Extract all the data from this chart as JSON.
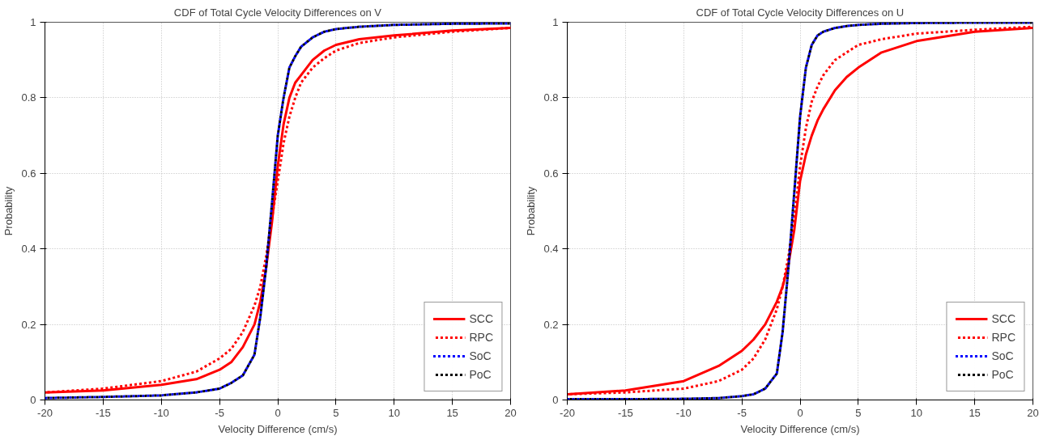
{
  "chart_data": [
    {
      "type": "line",
      "title": "CDF of Total Cycle Velocity Differences on V",
      "xlabel": "Velocity Difference (cm/s)",
      "ylabel": "Probability",
      "x": [
        -20,
        -15,
        -10,
        -7,
        -5,
        -4,
        -3,
        -2,
        -1.5,
        -1,
        -0.5,
        0,
        0.5,
        1,
        1.5,
        2,
        3,
        4,
        5,
        7,
        10,
        15,
        20
      ],
      "xlim": [
        -20,
        20
      ],
      "ylim": [
        0,
        1
      ],
      "xticks": [
        -20,
        -15,
        -10,
        -5,
        0,
        5,
        10,
        15,
        20
      ],
      "yticks": [
        0,
        0.2,
        0.4,
        0.6,
        0.8,
        1
      ],
      "grid": true,
      "legend": "bottom right",
      "marker": "none",
      "series": [
        {
          "name": "SCC",
          "color": "#ff0000",
          "line_style": "solid",
          "values": [
            0.02,
            0.025,
            0.04,
            0.055,
            0.08,
            0.1,
            0.14,
            0.2,
            0.26,
            0.35,
            0.47,
            0.62,
            0.73,
            0.8,
            0.84,
            0.86,
            0.9,
            0.925,
            0.94,
            0.955,
            0.965,
            0.978,
            0.985
          ]
        },
        {
          "name": "RPC",
          "color": "#ff0000",
          "line_style": "dashed",
          "values": [
            0.02,
            0.03,
            0.05,
            0.075,
            0.11,
            0.135,
            0.18,
            0.25,
            0.3,
            0.38,
            0.48,
            0.58,
            0.68,
            0.75,
            0.8,
            0.84,
            0.88,
            0.905,
            0.925,
            0.945,
            0.96,
            0.975,
            0.985
          ]
        },
        {
          "name": "SoC",
          "color": "#0000ff",
          "line_style": "dashed",
          "values": [
            0.005,
            0.008,
            0.012,
            0.02,
            0.03,
            0.045,
            0.065,
            0.12,
            0.22,
            0.35,
            0.52,
            0.7,
            0.8,
            0.88,
            0.91,
            0.935,
            0.96,
            0.975,
            0.982,
            0.988,
            0.993,
            0.996,
            0.997
          ]
        },
        {
          "name": "PoC",
          "color": "#000000",
          "line_style": "dashed",
          "values": [
            0.005,
            0.008,
            0.012,
            0.02,
            0.03,
            0.045,
            0.065,
            0.12,
            0.22,
            0.35,
            0.52,
            0.7,
            0.8,
            0.88,
            0.91,
            0.935,
            0.96,
            0.975,
            0.982,
            0.988,
            0.993,
            0.996,
            0.997
          ]
        }
      ]
    },
    {
      "type": "line",
      "title": "CDF of Total Cycle Velocity Differences on U",
      "xlabel": "Velocity Difference (cm/s)",
      "ylabel": "Probability",
      "x": [
        -20,
        -15,
        -10,
        -7,
        -5,
        -4,
        -3,
        -2,
        -1.5,
        -1,
        -0.5,
        0,
        0.5,
        1,
        1.5,
        2,
        3,
        4,
        5,
        7,
        10,
        15,
        20
      ],
      "xlim": [
        -20,
        20
      ],
      "ylim": [
        0,
        1
      ],
      "xticks": [
        -20,
        -15,
        -10,
        -5,
        0,
        5,
        10,
        15,
        20
      ],
      "yticks": [
        0,
        0.2,
        0.4,
        0.6,
        0.8,
        1
      ],
      "grid": true,
      "legend": "bottom right",
      "marker": "none",
      "series": [
        {
          "name": "SCC",
          "color": "#ff0000",
          "line_style": "solid",
          "values": [
            0.015,
            0.025,
            0.05,
            0.09,
            0.13,
            0.16,
            0.2,
            0.26,
            0.3,
            0.36,
            0.45,
            0.58,
            0.65,
            0.7,
            0.74,
            0.77,
            0.82,
            0.855,
            0.88,
            0.92,
            0.95,
            0.975,
            0.985
          ]
        },
        {
          "name": "RPC",
          "color": "#ff0000",
          "line_style": "dashed",
          "values": [
            0.015,
            0.02,
            0.03,
            0.05,
            0.08,
            0.11,
            0.16,
            0.24,
            0.3,
            0.38,
            0.48,
            0.62,
            0.72,
            0.79,
            0.83,
            0.86,
            0.9,
            0.92,
            0.94,
            0.955,
            0.97,
            0.98,
            0.988
          ]
        },
        {
          "name": "SoC",
          "color": "#0000ff",
          "line_style": "dashed",
          "values": [
            0.002,
            0.002,
            0.003,
            0.005,
            0.01,
            0.015,
            0.03,
            0.07,
            0.18,
            0.35,
            0.55,
            0.75,
            0.88,
            0.94,
            0.965,
            0.975,
            0.985,
            0.99,
            0.993,
            0.996,
            0.998,
            0.999,
            0.999
          ]
        },
        {
          "name": "PoC",
          "color": "#000000",
          "line_style": "dashed",
          "values": [
            0.002,
            0.002,
            0.003,
            0.005,
            0.01,
            0.015,
            0.03,
            0.07,
            0.18,
            0.35,
            0.55,
            0.75,
            0.88,
            0.94,
            0.965,
            0.975,
            0.985,
            0.99,
            0.993,
            0.996,
            0.998,
            0.999,
            0.999
          ]
        }
      ]
    }
  ]
}
